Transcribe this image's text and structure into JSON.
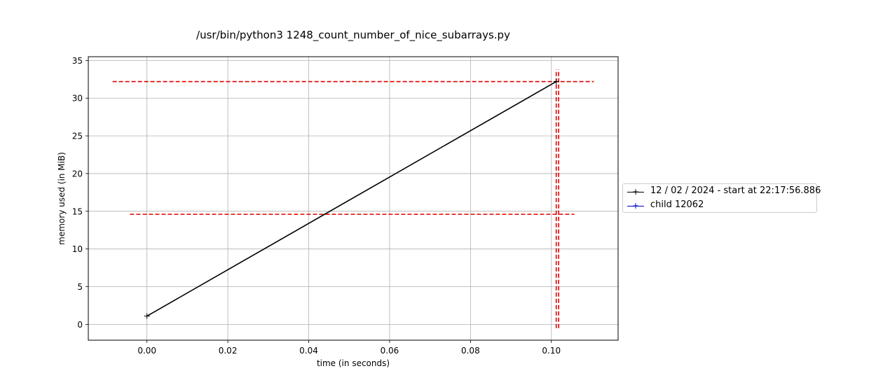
{
  "chart_data": {
    "type": "line",
    "title": "/usr/bin/python3 1248_count_number_of_nice_subarrays.py",
    "xlabel": "time (in seconds)",
    "ylabel": "memory used (in MiB)",
    "xlim": [
      -0.0145,
      0.1165
    ],
    "ylim": [
      -2.1,
      35.5
    ],
    "xticks": [
      0.0,
      0.02,
      0.04,
      0.06,
      0.08,
      0.1
    ],
    "xtick_labels": [
      "0.00",
      "0.02",
      "0.04",
      "0.06",
      "0.08",
      "0.10"
    ],
    "yticks": [
      0,
      5,
      10,
      15,
      20,
      25,
      30,
      35
    ],
    "ytick_labels": [
      "0",
      "5",
      "10",
      "15",
      "20",
      "25",
      "30",
      "35"
    ],
    "grid": true,
    "legend_position": "center-right-outside",
    "series": [
      {
        "name": "12 / 02 / 2024 - start at 22:17:56.886",
        "color": "#000000",
        "marker": "+",
        "x": [
          0.0,
          0.1012
        ],
        "y": [
          1.1,
          32.2
        ]
      },
      {
        "name": "child 12062",
        "color": "#0000cc",
        "marker": "+",
        "x": [],
        "y": []
      }
    ],
    "reference_lines": [
      {
        "orientation": "horizontal",
        "y": 32.2,
        "x_range": [
          -0.0085,
          0.1105
        ],
        "color": "#dd0000",
        "style": "dashed"
      },
      {
        "orientation": "horizontal",
        "y": 14.6,
        "x_range": [
          -0.0042,
          0.1057
        ],
        "color": "#dd0000",
        "style": "dashed"
      },
      {
        "orientation": "vertical",
        "x": 0.1012,
        "y_range": [
          -0.5,
          33.8
        ],
        "color": "#dd0000",
        "style": "dashed"
      },
      {
        "orientation": "vertical",
        "x": 0.1018,
        "y_range": [
          -0.5,
          33.8
        ],
        "color": "#dd0000",
        "style": "dashed"
      }
    ]
  }
}
